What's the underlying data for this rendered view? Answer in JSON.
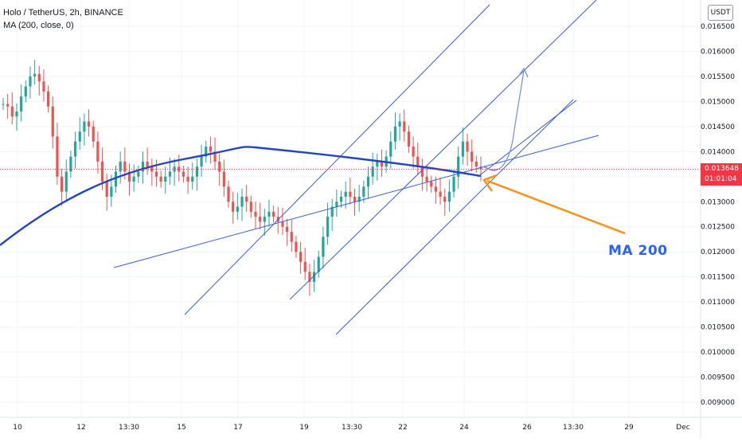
{
  "header": {
    "symbol": "Holo / TetherUS, 2h, BINANCE",
    "indicator": "MA (200, close, 0)"
  },
  "currency": "USDT",
  "last_price": {
    "price": "0.013648",
    "countdown": "01:01:04",
    "color": "#f23645"
  },
  "annotation": {
    "text": "MA 200",
    "color": "#2962ff",
    "arrow_color": "#f7941d"
  },
  "colors": {
    "up": "#26a69a",
    "down": "#ef5350",
    "ma": "#2444c8",
    "lines": "#3a5bd9",
    "grid": "#f0f3fa"
  },
  "chart_data": {
    "type": "candlestick",
    "ylim": [
      0.00875,
      0.0168
    ],
    "y_ticks": [
      "0.016500",
      "0.016000",
      "0.015500",
      "0.015000",
      "0.014500",
      "0.014000",
      "0.013500",
      "0.013000",
      "0.012500",
      "0.012000",
      "0.011500",
      "0.011000",
      "0.010500",
      "0.010000",
      "0.009500",
      "0.009000"
    ],
    "x_ticks": [
      "10",
      "12",
      "13:30",
      "15",
      "17",
      "19",
      "13:30",
      "22",
      "24",
      "26",
      "13:30",
      "29",
      "Dec"
    ],
    "series": [
      {
        "kind": "price",
        "close": [
          0.01495,
          0.0149,
          0.0147,
          0.0148,
          0.0151,
          0.0153,
          0.0155,
          0.01555,
          0.0154,
          0.0152,
          0.0149,
          0.0143,
          0.0135,
          0.0132,
          0.0136,
          0.0139,
          0.0142,
          0.0144,
          0.0146,
          0.0145,
          0.0142,
          0.0138,
          0.0134,
          0.0131,
          0.0133,
          0.0136,
          0.0138,
          0.0136,
          0.0134,
          0.0135,
          0.0136,
          0.0138,
          0.0137,
          0.0136,
          0.0135,
          0.0134,
          0.0135,
          0.0136,
          0.0137,
          0.0136,
          0.0135,
          0.0134,
          0.0135,
          0.0137,
          0.0139,
          0.0141,
          0.014,
          0.0138,
          0.0136,
          0.0133,
          0.013,
          0.0128,
          0.0129,
          0.0131,
          0.013,
          0.0128,
          0.0127,
          0.0126,
          0.0127,
          0.0128,
          0.0127,
          0.0126,
          0.0125,
          0.0124,
          0.0122,
          0.012,
          0.0118,
          0.0116,
          0.0114,
          0.0116,
          0.0119,
          0.0123,
          0.0127,
          0.0129,
          0.013,
          0.0131,
          0.0132,
          0.0131,
          0.013,
          0.0131,
          0.0133,
          0.0135,
          0.0137,
          0.0138,
          0.0137,
          0.0139,
          0.0142,
          0.0145,
          0.0146,
          0.0144,
          0.0141,
          0.0139,
          0.0137,
          0.0135,
          0.0134,
          0.0133,
          0.0132,
          0.0131,
          0.013,
          0.0132,
          0.0135,
          0.0139,
          0.0142,
          0.014,
          0.0138,
          0.0137,
          0.013648
        ],
        "open": [
          0.01495,
          0.01495,
          0.0149,
          0.0147,
          0.0148,
          0.0151,
          0.0153,
          0.0155,
          0.01555,
          0.0154,
          0.0152,
          0.0149,
          0.0143,
          0.0135,
          0.0132,
          0.0136,
          0.0139,
          0.0142,
          0.0144,
          0.0146,
          0.0145,
          0.0142,
          0.0138,
          0.0134,
          0.0131,
          0.0133,
          0.0136,
          0.0138,
          0.0136,
          0.0134,
          0.0135,
          0.0136,
          0.0138,
          0.0137,
          0.0136,
          0.0135,
          0.0134,
          0.0135,
          0.0136,
          0.0137,
          0.0136,
          0.0135,
          0.0134,
          0.0135,
          0.0137,
          0.0139,
          0.0141,
          0.014,
          0.0138,
          0.0136,
          0.0133,
          0.013,
          0.0128,
          0.0129,
          0.0131,
          0.013,
          0.0128,
          0.0127,
          0.0126,
          0.0127,
          0.0128,
          0.0127,
          0.0126,
          0.0125,
          0.0124,
          0.0122,
          0.012,
          0.0118,
          0.0116,
          0.0114,
          0.0116,
          0.0119,
          0.0123,
          0.0127,
          0.0129,
          0.013,
          0.0131,
          0.0132,
          0.0131,
          0.013,
          0.0131,
          0.0133,
          0.0135,
          0.0137,
          0.0138,
          0.0137,
          0.0139,
          0.0142,
          0.0145,
          0.0146,
          0.0144,
          0.0141,
          0.0139,
          0.0137,
          0.0135,
          0.0134,
          0.0133,
          0.0132,
          0.0131,
          0.013,
          0.0132,
          0.0135,
          0.0139,
          0.0142,
          0.014,
          0.0138,
          0.0137
        ]
      },
      {
        "kind": "ma200",
        "x": [
          "10",
          "17",
          "19",
          "22",
          "24"
        ],
        "y": [
          0.01245,
          0.01399,
          0.01389,
          0.01361,
          0.01344
        ]
      }
    ]
  }
}
